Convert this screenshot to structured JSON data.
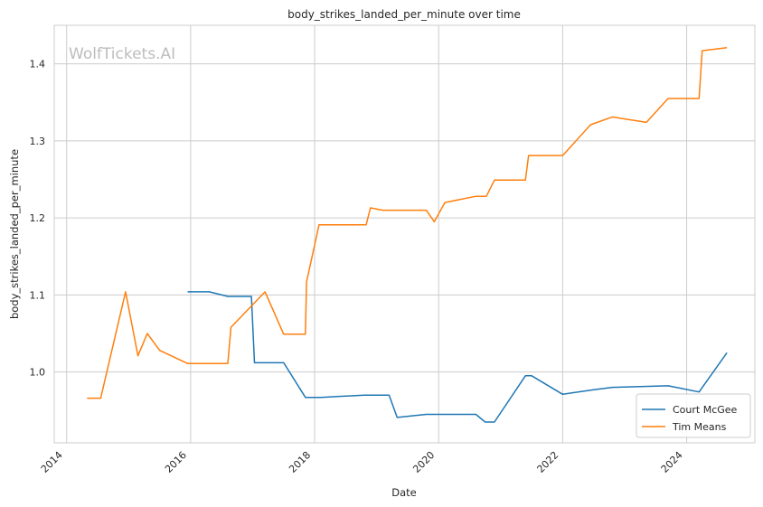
{
  "watermark": "WolfTickets.AI",
  "chart_data": {
    "type": "line",
    "title": "body_strikes_landed_per_minute over time",
    "xlabel": "Date",
    "ylabel": "body_strikes_landed_per_minute",
    "xlim": [
      2013.8,
      2025.1
    ],
    "ylim": [
      0.908,
      1.45
    ],
    "x_ticks": [
      2014,
      2016,
      2018,
      2020,
      2022,
      2024
    ],
    "x_tick_labels": [
      "2014",
      "2016",
      "2018",
      "2020",
      "2022",
      "2024"
    ],
    "y_ticks": [
      1.0,
      1.1,
      1.2,
      1.3,
      1.4
    ],
    "y_tick_labels": [
      "1.0",
      "1.1",
      "1.2",
      "1.3",
      "1.4"
    ],
    "grid": true,
    "legend_position": "lower-right",
    "series": [
      {
        "name": "Court McGee",
        "color": "#1f77b4",
        "x": [
          2015.95,
          2016.3,
          2016.6,
          2016.98,
          2017.03,
          2017.5,
          2017.85,
          2018.1,
          2018.8,
          2019.2,
          2019.33,
          2019.8,
          2020.6,
          2020.75,
          2020.9,
          2021.4,
          2021.5,
          2022.0,
          2022.5,
          2022.8,
          2023.7,
          2024.2,
          2024.65
        ],
        "y": [
          1.104,
          1.104,
          1.098,
          1.098,
          1.012,
          1.012,
          0.967,
          0.967,
          0.97,
          0.97,
          0.941,
          0.945,
          0.945,
          0.935,
          0.935,
          0.995,
          0.995,
          0.971,
          0.977,
          0.98,
          0.982,
          0.974,
          1.025
        ]
      },
      {
        "name": "Tim Means",
        "color": "#ff7f0e",
        "x": [
          2014.33,
          2014.55,
          2014.95,
          2015.15,
          2015.3,
          2015.5,
          2015.95,
          2016.6,
          2016.65,
          2017.2,
          2017.5,
          2017.85,
          2017.87,
          2018.07,
          2018.83,
          2018.9,
          2019.1,
          2019.8,
          2019.93,
          2020.1,
          2020.6,
          2020.77,
          2020.9,
          2021.4,
          2021.45,
          2022.0,
          2022.45,
          2022.8,
          2023.35,
          2023.7,
          2024.2,
          2024.25,
          2024.65
        ],
        "y": [
          0.966,
          0.966,
          1.104,
          1.021,
          1.05,
          1.028,
          1.011,
          1.011,
          1.058,
          1.104,
          1.049,
          1.049,
          1.117,
          1.191,
          1.191,
          1.213,
          1.21,
          1.21,
          1.195,
          1.22,
          1.228,
          1.228,
          1.249,
          1.249,
          1.281,
          1.281,
          1.321,
          1.331,
          1.324,
          1.355,
          1.355,
          1.417,
          1.421
        ]
      }
    ]
  }
}
